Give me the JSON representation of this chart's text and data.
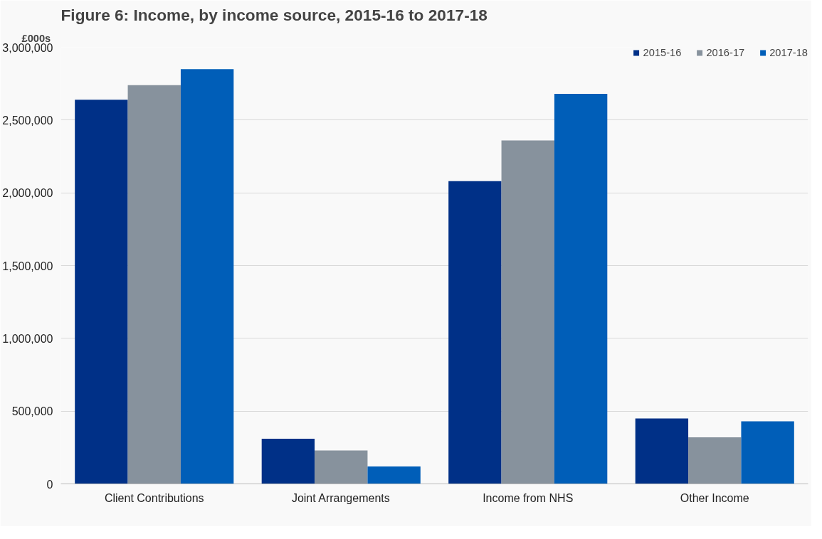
{
  "chart_data": {
    "type": "bar",
    "title": "Figure 6: Income, by income source, 2015-16 to 2017-18",
    "ylabel": "£000s",
    "categories": [
      "Client Contributions",
      "Joint Arrangements",
      "Income from NHS",
      "Other Income"
    ],
    "series": [
      {
        "name": "2015-16",
        "color": "#003087",
        "values": [
          2640000,
          310000,
          2080000,
          450000
        ]
      },
      {
        "name": "2016-17",
        "color": "#87929d",
        "values": [
          2740000,
          230000,
          2360000,
          320000
        ]
      },
      {
        "name": "2017-18",
        "color": "#005eb8",
        "values": [
          2850000,
          120000,
          2680000,
          430000
        ]
      }
    ],
    "ylim": [
      0,
      3000000
    ],
    "yticks": [
      {
        "value": 0,
        "label": "0"
      },
      {
        "value": 500000,
        "label": "500,000"
      },
      {
        "value": 1000000,
        "label": "1,000,000"
      },
      {
        "value": 1500000,
        "label": "1,500,000"
      },
      {
        "value": 2000000,
        "label": "2,000,000"
      },
      {
        "value": 2500000,
        "label": "2,500,000"
      },
      {
        "value": 3000000,
        "label": "3,000,000"
      }
    ],
    "grid": "y",
    "legend": "top right"
  }
}
